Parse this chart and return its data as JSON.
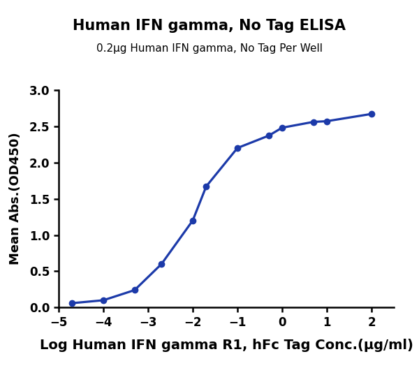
{
  "title": "Human IFN gamma, No Tag ELISA",
  "subtitle": "0.2μg Human IFN gamma, No Tag Per Well",
  "xlabel": "Log Human IFN gamma R1, hFc Tag Conc.(μg/ml)",
  "ylabel": "Mean Abs.(OD450)",
  "x_data": [
    -4.699,
    -4.0,
    -3.301,
    -2.699,
    -2.0,
    -1.699,
    -1.0,
    -0.301,
    0.0,
    0.699,
    1.0,
    2.0
  ],
  "y_data": [
    0.06,
    0.1,
    0.24,
    0.6,
    1.2,
    1.67,
    2.2,
    2.37,
    2.48,
    2.56,
    2.57,
    2.67
  ],
  "xlim": [
    -5,
    2.5
  ],
  "ylim": [
    0.0,
    3.0
  ],
  "xticks": [
    -5,
    -4,
    -3,
    -2,
    -1,
    0,
    1,
    2
  ],
  "yticks": [
    0.0,
    0.5,
    1.0,
    1.5,
    2.0,
    2.5,
    3.0
  ],
  "line_color": "#1c3aa9",
  "dot_color": "#1c3aa9",
  "background_color": "#ffffff",
  "title_fontsize": 15,
  "subtitle_fontsize": 11,
  "xlabel_fontsize": 14,
  "ylabel_fontsize": 13,
  "tick_fontsize": 12
}
